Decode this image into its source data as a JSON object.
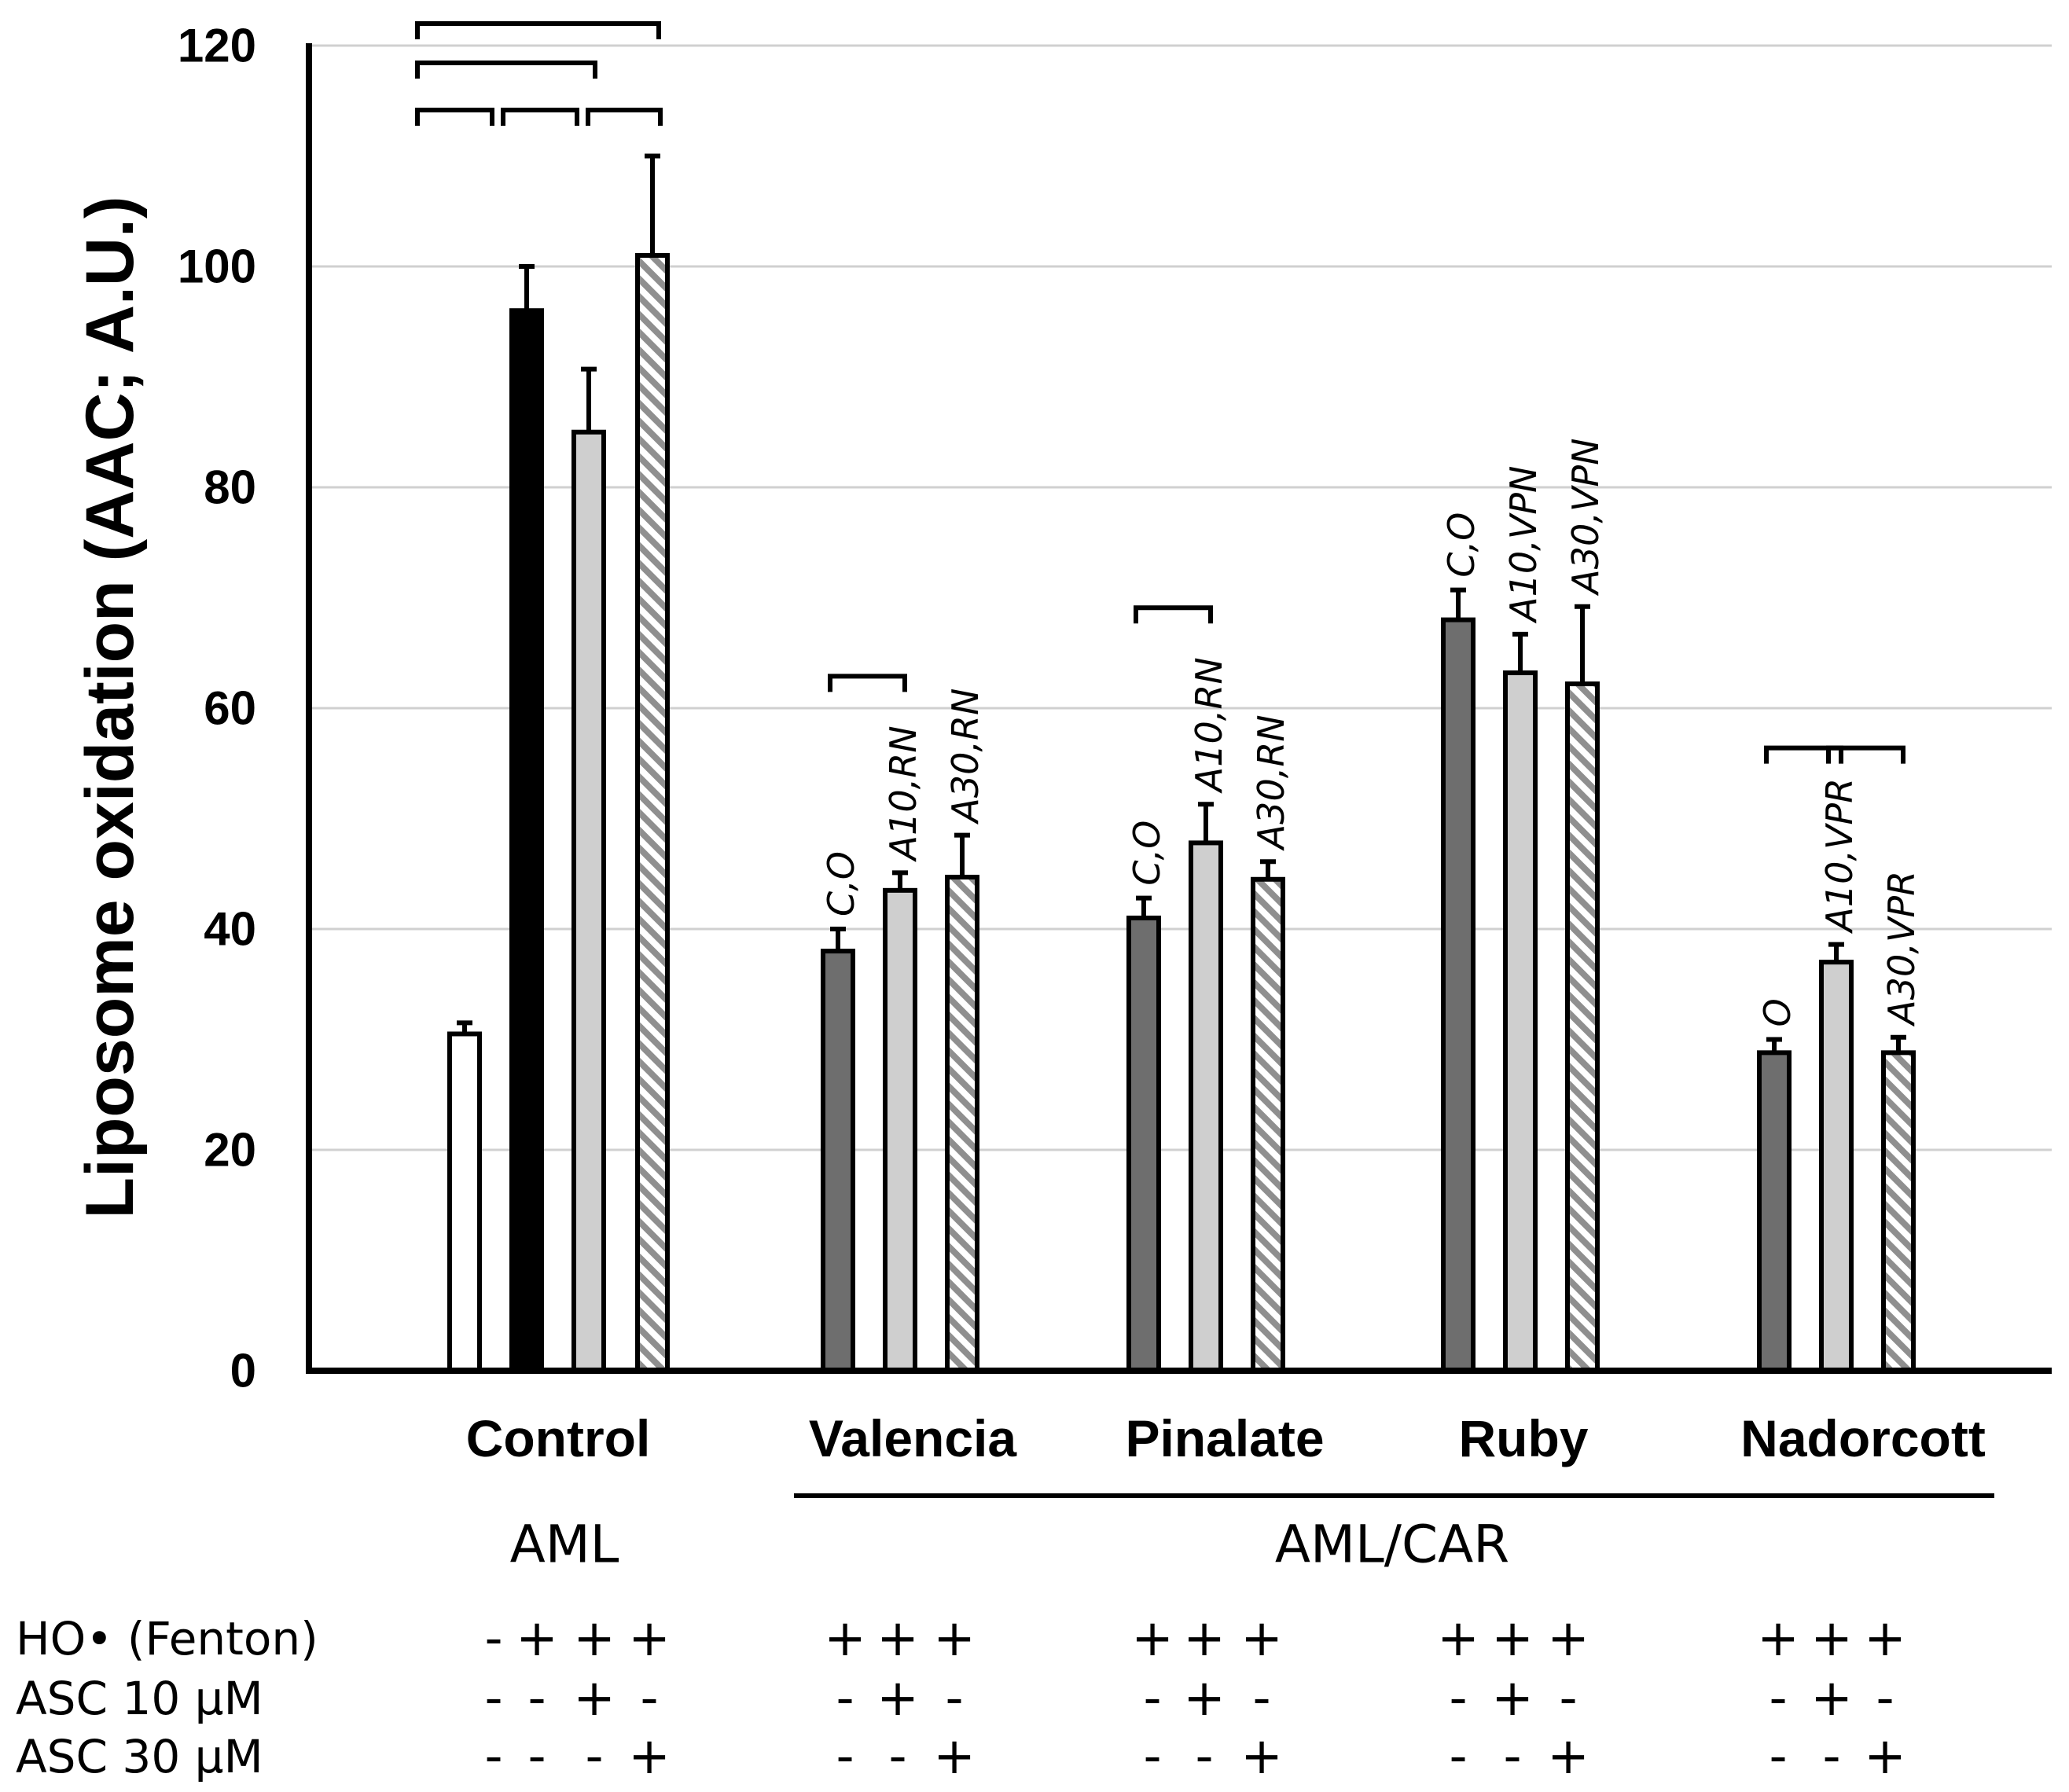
{
  "chart_data": {
    "type": "bar",
    "ylabel": "Liposome oxidation (AAC; A.U.)",
    "ylim": [
      0,
      120
    ],
    "yticks": [
      0,
      20,
      40,
      60,
      80,
      100,
      120
    ],
    "grid": true,
    "categories": [
      "Control",
      "Valencia",
      "Pinalate",
      "Ruby",
      "Nadorcott"
    ],
    "groups": [
      {
        "label": "AML",
        "categories": [
          "Control"
        ]
      },
      {
        "label": "AML/CAR",
        "categories": [
          "Valencia",
          "Pinalate",
          "Ruby",
          "Nadorcott"
        ]
      }
    ],
    "bars": [
      {
        "category": "Control",
        "fill": "white",
        "value": 30.5,
        "error": 1.0,
        "annotation": ""
      },
      {
        "category": "Control",
        "fill": "black",
        "value": 96,
        "error": 4.0,
        "annotation": ""
      },
      {
        "category": "Control",
        "fill": "lightgray",
        "value": 85,
        "error": 5.7,
        "annotation": ""
      },
      {
        "category": "Control",
        "fill": "hatched",
        "value": 101,
        "error": 9.0,
        "annotation": ""
      },
      {
        "category": "Valencia",
        "fill": "darkgray",
        "value": 38,
        "error": 2.0,
        "annotation": "C,O"
      },
      {
        "category": "Valencia",
        "fill": "lightgray",
        "value": 43.5,
        "error": 1.6,
        "annotation": "A10,RN"
      },
      {
        "category": "Valencia",
        "fill": "hatched",
        "value": 44.7,
        "error": 3.8,
        "annotation": "A30,RN"
      },
      {
        "category": "Pinalate",
        "fill": "darkgray",
        "value": 41,
        "error": 1.8,
        "annotation": "C,O"
      },
      {
        "category": "Pinalate",
        "fill": "lightgray",
        "value": 47.8,
        "error": 3.5,
        "annotation": "A10,RN"
      },
      {
        "category": "Pinalate",
        "fill": "hatched",
        "value": 44.5,
        "error": 1.6,
        "annotation": "A30,RN"
      },
      {
        "category": "Ruby",
        "fill": "darkgray",
        "value": 68,
        "error": 2.7,
        "annotation": "C,O"
      },
      {
        "category": "Ruby",
        "fill": "lightgray",
        "value": 63.2,
        "error": 3.5,
        "annotation": "A10,VPN"
      },
      {
        "category": "Ruby",
        "fill": "hatched",
        "value": 62.2,
        "error": 7.0,
        "annotation": "A30,VPN"
      },
      {
        "category": "Nadorcott",
        "fill": "darkgray",
        "value": 28.8,
        "error": 1.2,
        "annotation": "O"
      },
      {
        "category": "Nadorcott",
        "fill": "lightgray",
        "value": 37,
        "error": 1.6,
        "annotation": "A10,VPR"
      },
      {
        "category": "Nadorcott",
        "fill": "hatched",
        "value": 28.8,
        "error": 1.4,
        "annotation": "A30,VPR"
      }
    ],
    "significance_brackets": [
      {
        "from": 0,
        "to": 3,
        "level": 3
      },
      {
        "from": 0,
        "to": 2,
        "level": 2
      },
      {
        "from": 0,
        "to": 1,
        "level": 1
      },
      {
        "from": 1,
        "to": 2,
        "level": 1
      },
      {
        "from": 2,
        "to": 3,
        "level": 1
      },
      {
        "from": 4,
        "to": 5,
        "level": 1
      },
      {
        "from": 7,
        "to": 8,
        "level": 1
      },
      {
        "from": 13,
        "to": 14,
        "level": 1
      },
      {
        "from": 14,
        "to": 15,
        "level": 1
      }
    ],
    "conditions": [
      {
        "label": "HO• (Fenton)",
        "values": [
          [
            "-",
            "+",
            "+",
            "+"
          ],
          [
            "+",
            "+",
            "+"
          ],
          [
            "+",
            "+",
            "+"
          ],
          [
            "+",
            "+",
            "+"
          ],
          [
            "+",
            "+",
            "+"
          ]
        ]
      },
      {
        "label": "ASC 10 μM",
        "values": [
          [
            "-",
            "-",
            "+",
            "-"
          ],
          [
            "-",
            "+",
            "-"
          ],
          [
            "-",
            "+",
            "-"
          ],
          [
            "-",
            "+",
            "-"
          ],
          [
            "-",
            "+",
            "-"
          ]
        ]
      },
      {
        "label": "ASC 30 μM",
        "values": [
          [
            "-",
            "-",
            "-",
            "+"
          ],
          [
            "-",
            "-",
            "+"
          ],
          [
            "-",
            "-",
            "+"
          ],
          [
            "-",
            "-",
            "+"
          ],
          [
            "-",
            "-",
            "+"
          ]
        ]
      }
    ]
  },
  "colors": {
    "darkgray": "#6e6e6e",
    "lightgray": "#cfcfcf",
    "hatched_stripe": "#8f8f8f",
    "grid": "#d0d0d0",
    "axis": "#000000"
  }
}
